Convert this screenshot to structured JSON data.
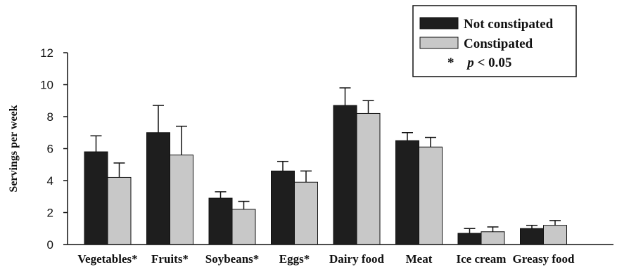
{
  "chart_data": {
    "type": "bar",
    "categories": [
      "Vegetables*",
      "Fruits*",
      "Soybeans*",
      "Eggs*",
      "Dairy food",
      "Meat",
      "Ice cream",
      "Greasy food"
    ],
    "series": [
      {
        "name": "Not constipated",
        "color": "#1e1e1e",
        "values": [
          5.8,
          7.0,
          2.9,
          4.6,
          8.7,
          6.5,
          0.7,
          1.0
        ],
        "errors": [
          1.0,
          1.7,
          0.4,
          0.6,
          1.1,
          0.5,
          0.3,
          0.2
        ]
      },
      {
        "name": "Constipated",
        "color": "#c8c8c8",
        "values": [
          4.2,
          5.6,
          2.2,
          3.9,
          8.2,
          6.1,
          0.8,
          1.2
        ],
        "errors": [
          0.9,
          1.8,
          0.5,
          0.7,
          0.8,
          0.6,
          0.3,
          0.3
        ]
      }
    ],
    "xlabel": "",
    "ylabel": "Servings per week",
    "ylim": [
      0,
      12
    ],
    "yticks": [
      "0",
      "2",
      "4",
      "6",
      "8",
      "10",
      "12"
    ],
    "legend": {
      "placement": "top-right",
      "note_symbol": "*",
      "note_p": "p",
      "note_rest": " < 0.05"
    }
  }
}
